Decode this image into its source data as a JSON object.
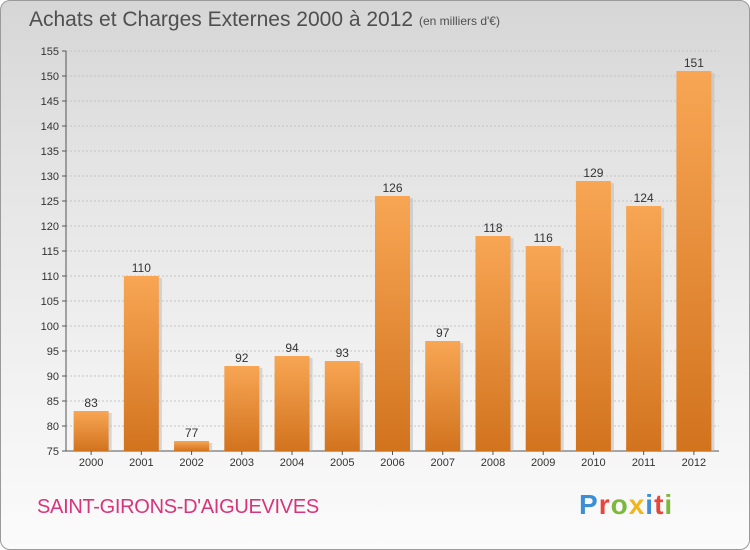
{
  "chart_data": {
    "type": "bar",
    "title": "Achats et Charges Externes 2000 à 2012",
    "subtitle": "(en milliers d'€)",
    "categories": [
      "2000",
      "2001",
      "2002",
      "2003",
      "2004",
      "2005",
      "2006",
      "2007",
      "2008",
      "2009",
      "2010",
      "2011",
      "2012"
    ],
    "values": [
      83,
      110,
      77,
      92,
      94,
      93,
      126,
      97,
      118,
      116,
      129,
      124,
      151
    ],
    "ylim": [
      75,
      155
    ],
    "yticks": [
      75,
      80,
      85,
      90,
      95,
      100,
      105,
      110,
      115,
      120,
      125,
      130,
      135,
      140,
      145,
      150,
      155
    ],
    "grid": true,
    "bar_color": "#f0913a"
  },
  "footer": {
    "commune": "SAINT-GIRONS-D'AIGUEVIVES",
    "logo": "Proxiti",
    "logo_colors": [
      "#3c8fd6",
      "#e8463c",
      "#7cb83c",
      "#f2b51c",
      "#3c8fd6",
      "#e8463c",
      "#7cb83c"
    ]
  }
}
